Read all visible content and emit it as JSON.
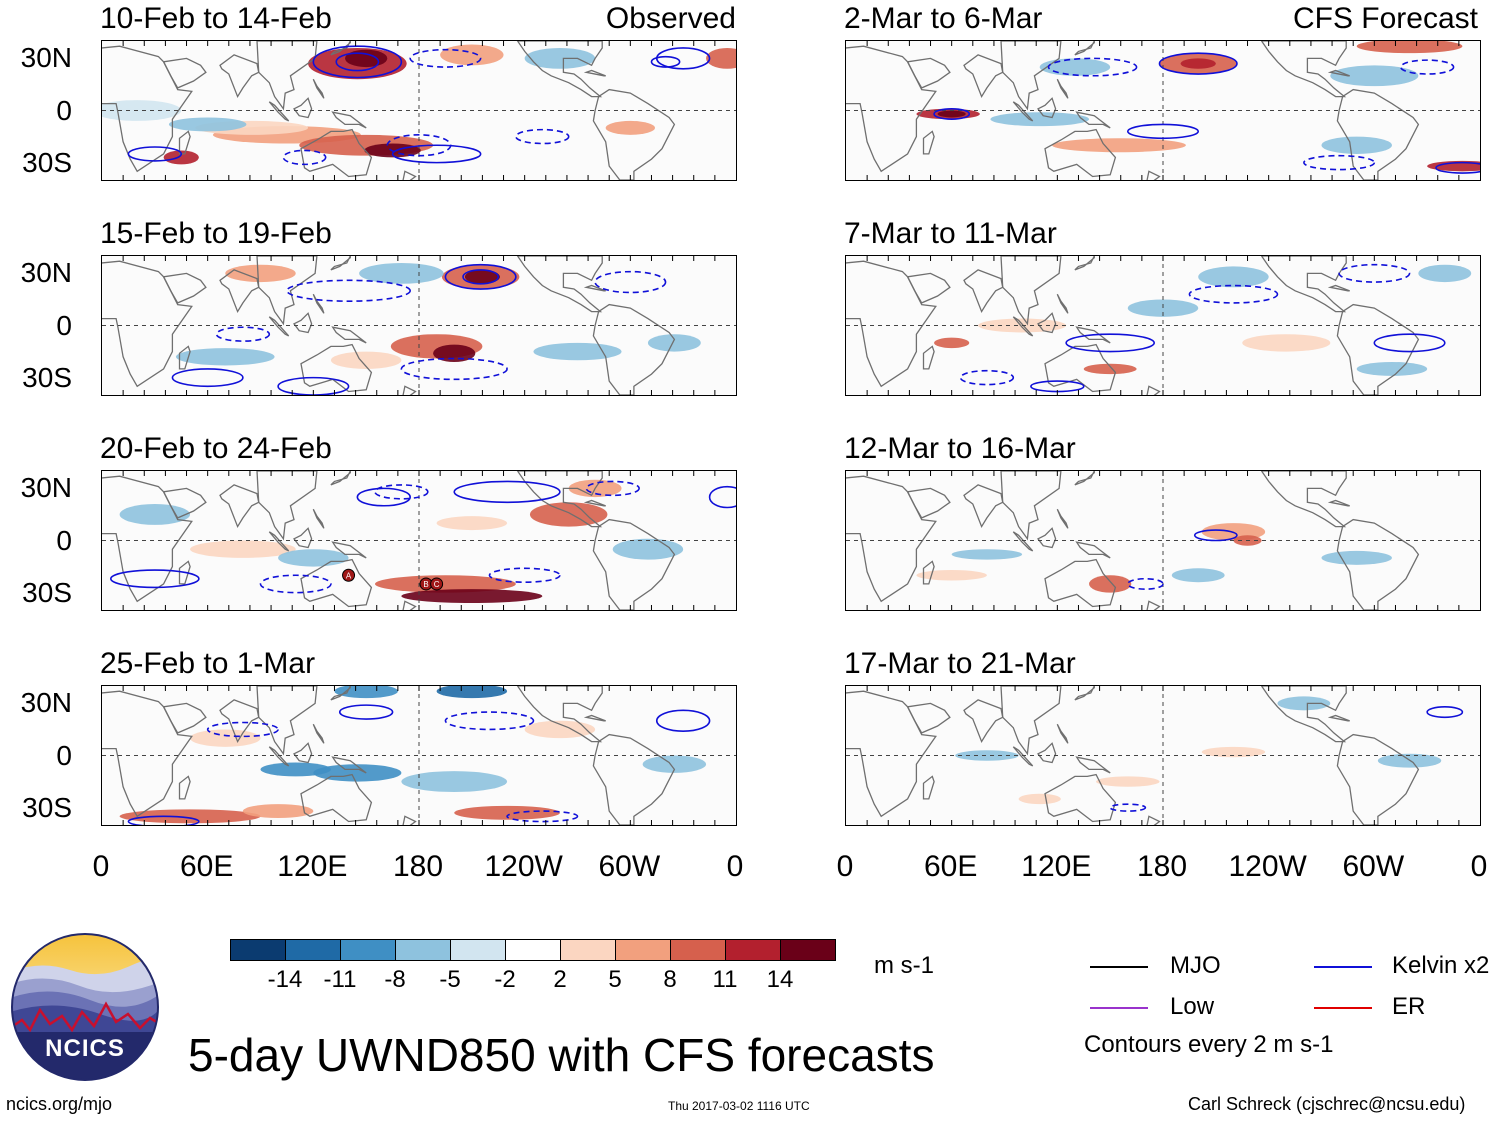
{
  "colors": {
    "kelvin": "#1010d8",
    "mjo": "#000000",
    "low": "#9933cc",
    "er": "#e00000",
    "coast": "#6f6f6f",
    "equator": "#444444"
  },
  "panels": [
    {
      "title": "10-Feb to 14-Feb",
      "tag": "Observed"
    },
    {
      "title": "15-Feb to 19-Feb",
      "tag": ""
    },
    {
      "title": "20-Feb to 24-Feb",
      "tag": ""
    },
    {
      "title": "25-Feb to 1-Mar",
      "tag": ""
    },
    {
      "title": "2-Mar to 6-Mar",
      "tag": "CFS Forecast"
    },
    {
      "title": "7-Mar to 11-Mar",
      "tag": ""
    },
    {
      "title": "12-Mar to 16-Mar",
      "tag": ""
    },
    {
      "title": "17-Mar to 21-Mar",
      "tag": ""
    }
  ],
  "chart_data": {
    "type": "heatmap",
    "title": "5-day UWND850 with CFS forecasts",
    "variable": "850-hPa zonal wind anomaly",
    "units": "m s-1",
    "lat_ticks": [
      "30N",
      "0",
      "30S"
    ],
    "lon_ticks": [
      "0",
      "60E",
      "120E",
      "180",
      "120W",
      "60W",
      "0"
    ],
    "lat_range": [
      -40,
      40
    ],
    "lon_range": [
      0,
      360
    ],
    "colorbar": {
      "ticks": [
        "-14",
        "-11",
        "-8",
        "-5",
        "-2",
        "2",
        "5",
        "8",
        "11",
        "14"
      ],
      "colors": [
        "#0b3b70",
        "#1f6aa6",
        "#3f8fc4",
        "#8ec2de",
        "#d2e5f0",
        "#ffffff",
        "#fbd6c1",
        "#f2a07e",
        "#d6604d",
        "#b3202e",
        "#6a0018"
      ]
    },
    "contour_note": "Contours every 2 m s-1",
    "legend": [
      {
        "name": "MJO",
        "color": "#000000"
      },
      {
        "name": "Kelvin x2",
        "color": "#1010d8"
      },
      {
        "name": "Low",
        "color": "#9933cc"
      },
      {
        "name": "ER",
        "color": "#e00000"
      }
    ],
    "storm_markers": [
      {
        "panel": 2,
        "label": "A",
        "lon": 140,
        "lat": -20
      },
      {
        "panel": 2,
        "label": "B",
        "lon": 184,
        "lat": -25
      },
      {
        "panel": 2,
        "label": "C",
        "lon": 190,
        "lat": -25
      }
    ]
  },
  "logo": {
    "text": "NCICS"
  },
  "footer": {
    "left": "ncics.org/mjo",
    "center": "Thu 2017-03-02 1116 UTC",
    "right": "Carl Schreck (cjschrec@ncsu.edu)"
  }
}
